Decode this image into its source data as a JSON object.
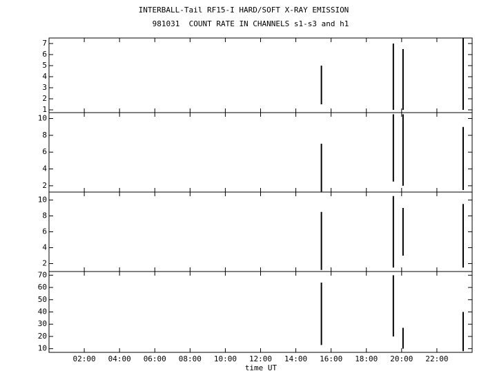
{
  "chart_data": [
    {
      "type": "line",
      "title": "INTERBALL-Tail RF15-I HARD/SOFT X-RAY EMISSION",
      "subtitle": "981031  COUNT RATE IN CHANNELS s1-s3 and h1",
      "xlim": [
        0,
        24
      ],
      "ylim": [
        0.75,
        7.5
      ],
      "yticks": [
        1,
        2,
        3,
        4,
        5,
        6,
        7
      ],
      "color": "#000000",
      "x": [
        15.45,
        15.45,
        15.45,
        19.53,
        19.53,
        19.53,
        20.08,
        20.08,
        20.08,
        23.49,
        23.49
      ],
      "values": [
        1.5,
        5,
        null,
        1,
        7,
        null,
        1,
        6.5,
        null,
        1,
        7.5
      ]
    },
    {
      "type": "line",
      "xlim": [
        0,
        24
      ],
      "ylim": [
        1.25,
        10.7
      ],
      "yticks": [
        2,
        4,
        6,
        8,
        10
      ],
      "color": "#000000",
      "x": [
        15.45,
        15.45,
        15.45,
        19.53,
        19.53,
        19.53,
        20.08,
        20.08,
        20.08,
        23.49,
        23.49
      ],
      "values": [
        1.3,
        7,
        null,
        2.5,
        10.5,
        null,
        2,
        10.5,
        null,
        1.5,
        9
      ]
    },
    {
      "type": "line",
      "xlim": [
        0,
        24
      ],
      "ylim": [
        1,
        11
      ],
      "yticks": [
        2,
        4,
        6,
        8,
        10
      ],
      "color": "#000000",
      "x": [
        15.45,
        15.45,
        15.45,
        19.53,
        19.53,
        19.53,
        20.08,
        20.08,
        20.08,
        23.49,
        23.49
      ],
      "values": [
        1.2,
        8.5,
        null,
        1.5,
        10.5,
        null,
        3,
        9,
        null,
        1.5,
        9.5
      ]
    },
    {
      "type": "line",
      "xlim": [
        0,
        24
      ],
      "ylim": [
        7,
        73
      ],
      "yticks": [
        10,
        20,
        30,
        40,
        50,
        60,
        70
      ],
      "color": "#000000",
      "xlabel": "time UT",
      "xticks": [
        {
          "value": 2,
          "label": "02:00"
        },
        {
          "value": 4,
          "label": "04:00"
        },
        {
          "value": 6,
          "label": "06:00"
        },
        {
          "value": 8,
          "label": "08:00"
        },
        {
          "value": 10,
          "label": "10:00"
        },
        {
          "value": 12,
          "label": "12:00"
        },
        {
          "value": 14,
          "label": "14:00"
        },
        {
          "value": 16,
          "label": "16:00"
        },
        {
          "value": 18,
          "label": "18:00"
        },
        {
          "value": 20,
          "label": "20:00"
        },
        {
          "value": 22,
          "label": "22:00"
        }
      ],
      "x": [
        15.45,
        15.45,
        15.45,
        19.53,
        19.53,
        19.53,
        20.08,
        20.08,
        20.08,
        23.49,
        23.49
      ],
      "values": [
        13,
        64,
        null,
        20,
        70,
        null,
        10,
        27,
        null,
        8,
        40
      ]
    }
  ]
}
